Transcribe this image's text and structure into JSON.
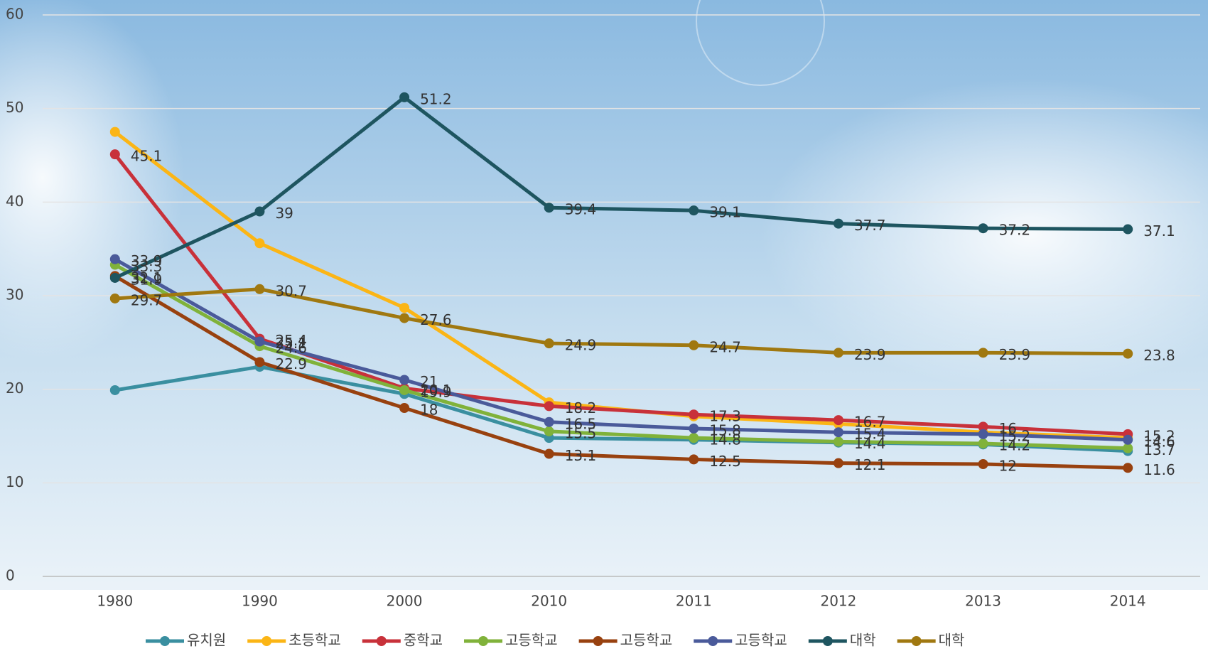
{
  "chart_data": {
    "type": "line",
    "categories": [
      "1980",
      "1990",
      "2000",
      "2010",
      "2011",
      "2012",
      "2013",
      "2014"
    ],
    "ylim": [
      0,
      60
    ],
    "yticks": [
      0,
      10,
      20,
      30,
      40,
      50,
      60
    ],
    "grid": true,
    "legend": "bottom",
    "series": [
      {
        "name": "유치원",
        "color": "#3a8fa0",
        "labels": false,
        "values": [
          19.9,
          22.4,
          19.5,
          14.8,
          14.6,
          14.3,
          14.1,
          13.4
        ]
      },
      {
        "name": "초등학교",
        "color": "#fbb515",
        "labels": false,
        "values": [
          47.5,
          35.6,
          28.7,
          18.6,
          17.1,
          16.3,
          15.4,
          14.8
        ]
      },
      {
        "name": "중학교",
        "color": "#c8313a",
        "labels": true,
        "values": [
          45.1,
          25.4,
          20.1,
          18.2,
          17.3,
          16.7,
          16,
          15.2
        ]
      },
      {
        "name": "고등학교",
        "color": "#80b23a",
        "labels": true,
        "values": [
          33.3,
          24.6,
          19.9,
          15.5,
          14.8,
          14.4,
          14.2,
          13.7
        ]
      },
      {
        "name": "고등학교",
        "color": "#98410f",
        "labels": true,
        "values": [
          32.1,
          22.9,
          18,
          13.1,
          12.5,
          12.1,
          12,
          11.6
        ]
      },
      {
        "name": "고등학교",
        "color": "#4a5a9a",
        "labels": true,
        "values": [
          33.9,
          25.1,
          21,
          16.5,
          15.8,
          15.4,
          15.2,
          14.6
        ]
      },
      {
        "name": "대학",
        "color": "#1e5560",
        "labels": true,
        "values": [
          31.9,
          39,
          51.2,
          39.4,
          39.1,
          37.7,
          37.2,
          37.1
        ]
      },
      {
        "name": "대학",
        "color": "#a07810",
        "labels": true,
        "values": [
          29.7,
          30.7,
          27.6,
          24.9,
          24.7,
          23.9,
          23.9,
          23.8
        ]
      }
    ]
  }
}
